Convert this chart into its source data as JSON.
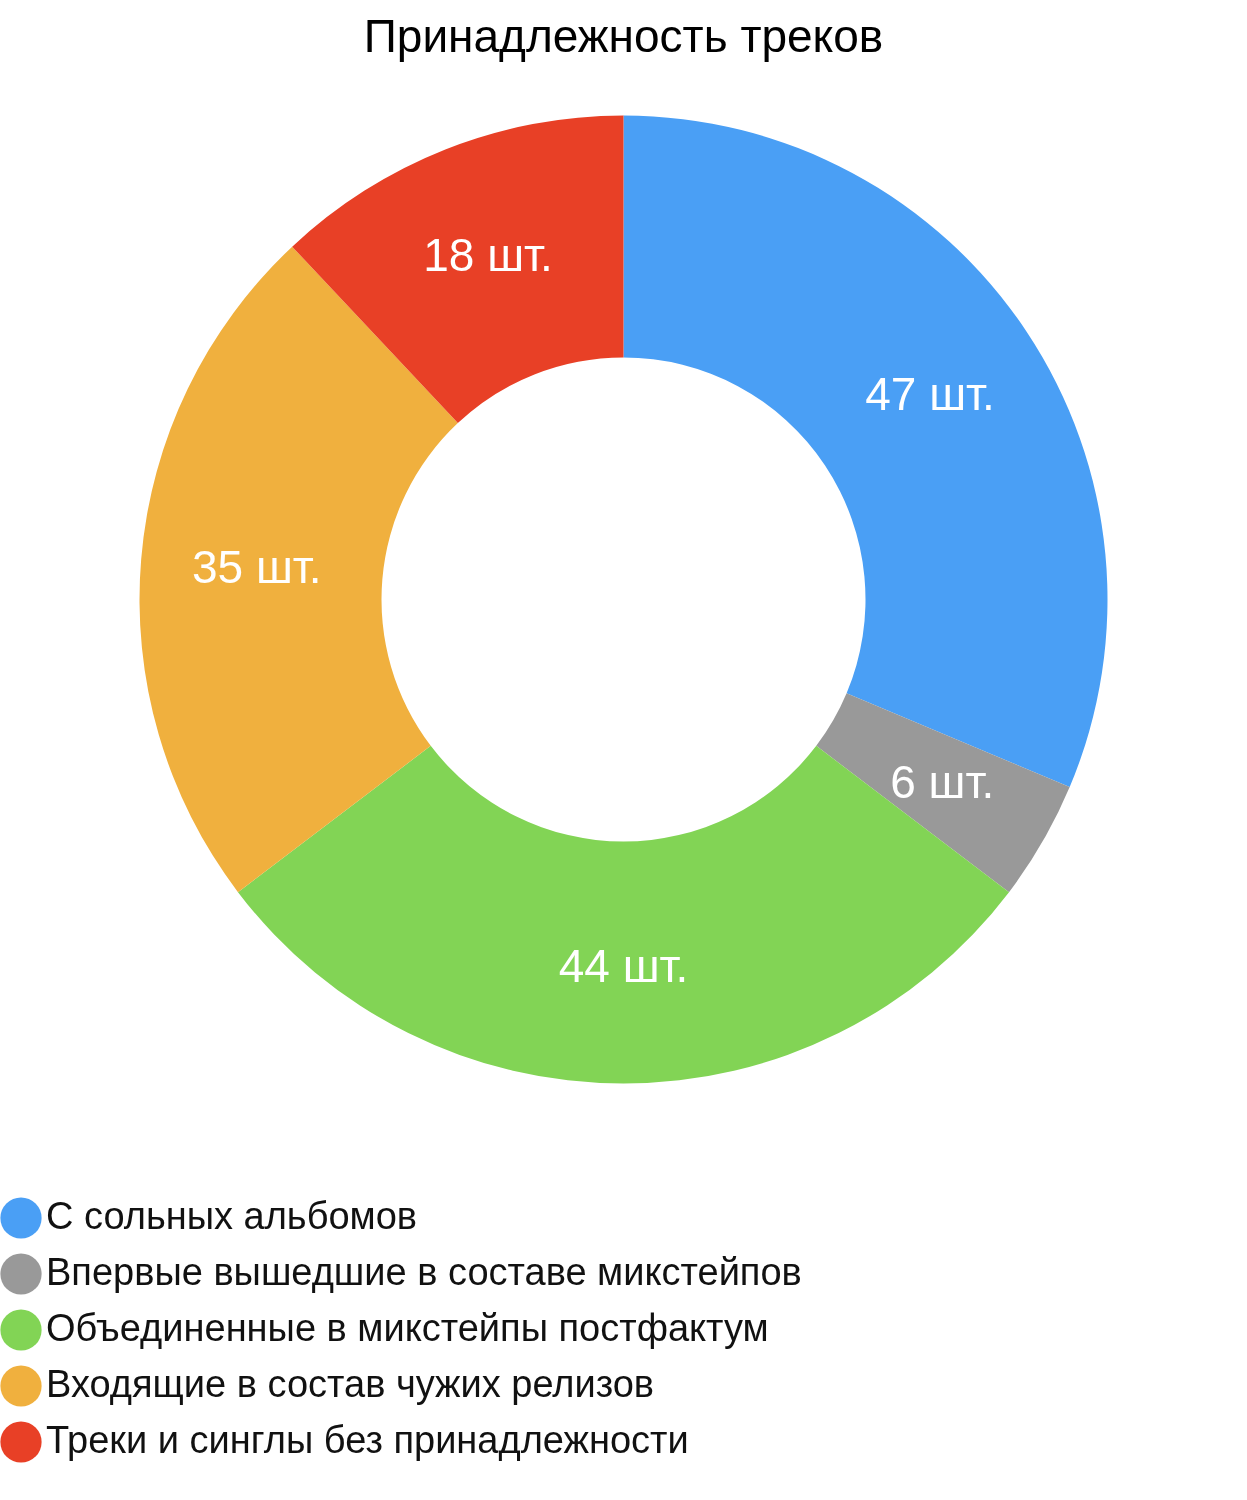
{
  "chart_data": {
    "type": "donut",
    "title": "Принадлежность треков",
    "categories": [
      "С сольных альбомов",
      "Впервые вышедшие в составе микстейпов",
      "Объединенные в микстейпы постфактум",
      "Входящие в состав чужих релизов",
      "Треки и синглы без принадлежности"
    ],
    "values": [
      47,
      6,
      44,
      35,
      18
    ],
    "colors": [
      "#4a9ff5",
      "#999999",
      "#82d455",
      "#f0b03e",
      "#e84026"
    ],
    "value_labels": [
      "47 шт.",
      "6 шт.",
      "44 шт.",
      "35 шт.",
      "18 шт."
    ],
    "legend": "bottom"
  }
}
